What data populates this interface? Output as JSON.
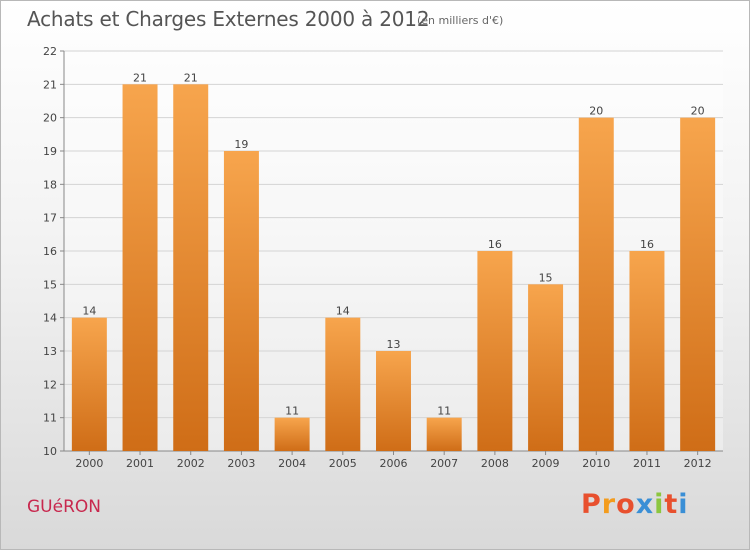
{
  "header": {
    "title": "Achats et Charges Externes 2000 à 2012",
    "subtitle": "(en milliers d'€)"
  },
  "footer": {
    "commune": "GUéRON",
    "logo_text": "Proxiti"
  },
  "colors": {
    "bar_light": "#f7a54d",
    "bar_dark": "#cf6d17",
    "commune_text": "#c8284e",
    "logo_letters": [
      "#e8502e",
      "#f39c1d",
      "#e8502e",
      "#3a8fd6",
      "#8cc63f",
      "#e8502e",
      "#3a8fd6"
    ]
  },
  "chart_data": {
    "type": "bar",
    "title": "Achats et Charges Externes 2000 à 2012",
    "subtitle": "(en milliers d'€)",
    "categories": [
      "2000",
      "2001",
      "2002",
      "2003",
      "2004",
      "2005",
      "2006",
      "2007",
      "2008",
      "2009",
      "2010",
      "2011",
      "2012"
    ],
    "values": [
      14,
      21,
      21,
      19,
      11,
      14,
      13,
      11,
      16,
      15,
      20,
      16,
      20
    ],
    "data_labels": [
      "14",
      "21",
      "21",
      "19",
      "11",
      "14",
      "13",
      "11",
      "16",
      "15",
      "20",
      "16",
      "20"
    ],
    "ylim": [
      10,
      22
    ],
    "yticks": [
      "10",
      "11",
      "12",
      "13",
      "14",
      "15",
      "16",
      "17",
      "18",
      "19",
      "20",
      "21",
      "22"
    ],
    "grid": true,
    "legend": "none"
  }
}
